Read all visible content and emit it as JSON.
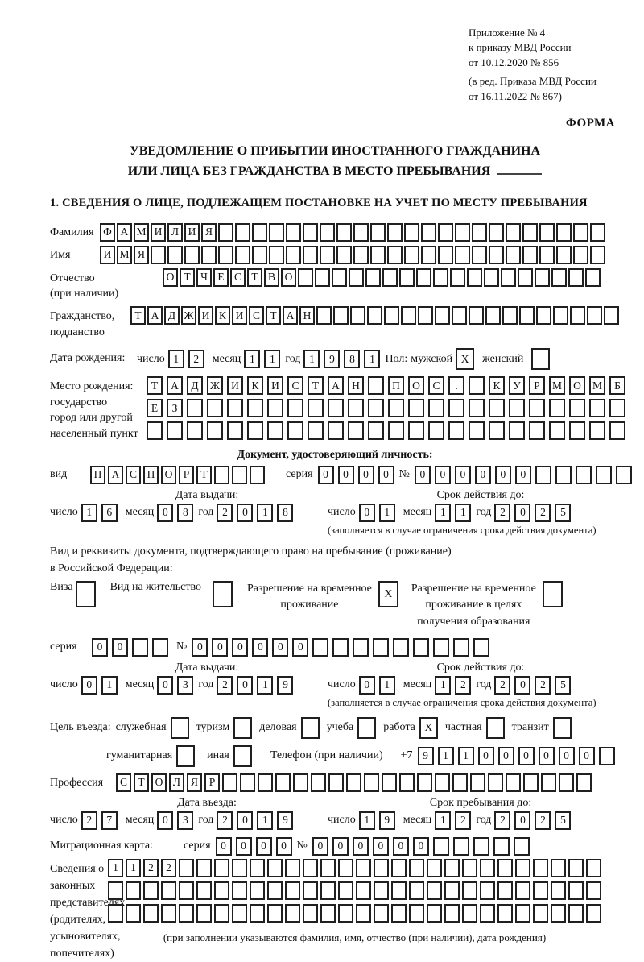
{
  "labels": {
    "day": "число",
    "month": "месяц",
    "year": "год",
    "series": "серия",
    "number": "№"
  },
  "header": {
    "annex": [
      "Приложение № 4",
      "к приказу МВД России",
      "от 10.12.2020 № 856"
    ],
    "edition": [
      "(в ред. Приказа МВД России",
      "от 16.11.2022 № 867)"
    ],
    "form_label": "ФОРМА"
  },
  "title": {
    "line1": "УВЕДОМЛЕНИЕ О ПРИБЫТИИ ИНОСТРАННОГО ГРАЖДАНИНА",
    "line2": "ИЛИ ЛИЦА БЕЗ ГРАЖДАНСТВА В МЕСТО ПРЕБЫВАНИЯ"
  },
  "section1": {
    "heading": "1. СВЕДЕНИЯ О ЛИЦЕ, ПОДЛЕЖАЩЕМ ПОСТАНОВКЕ НА УЧЕТ ПО МЕСТУ ПРЕБЫВАНИЯ",
    "surname": {
      "label": "Фамилия",
      "cells": {
        "v": "ФАМИЛИЯ",
        "n": 30
      }
    },
    "firstname": {
      "label": "Имя",
      "cells": {
        "v": "ИМЯ",
        "n": 30
      }
    },
    "patronymic": {
      "label1": "Отчество",
      "label2": "(при наличии)",
      "cells": {
        "v": "ОТЧЕСТВО",
        "n": 26
      }
    },
    "citizenship": {
      "label1": "Гражданство,",
      "label2": "подданство",
      "cells": {
        "v": "ТАДЖИКИСТАН",
        "n": 29
      }
    },
    "birthdate": {
      "label": "Дата рождения:",
      "day": {
        "v": "12",
        "n": 2
      },
      "month": {
        "v": "11",
        "n": 2
      },
      "year": {
        "v": "1981",
        "n": 4
      },
      "sex_label": "Пол:",
      "male_label": "мужской",
      "male": {
        "v": "X",
        "n": 1
      },
      "female_label": "женский",
      "female": {
        "v": " ",
        "n": 1
      }
    },
    "birthplace": {
      "label_lines": [
        "Место рождения:",
        "государство",
        "город или другой",
        "населенный пункт"
      ],
      "row1": {
        "v": "ТАДЖИКИСТАН ПОС. КУРМОМБ",
        "n": 24
      },
      "row2": {
        "v": "ЕЗ",
        "n": 24
      },
      "row3": {
        "v": "",
        "n": 24
      }
    },
    "identity_doc": {
      "heading": "Документ, удостоверяющий личность:",
      "kind_label": "вид",
      "kind": {
        "v": "ПАСПОРТ",
        "n": 10
      },
      "series": {
        "v": "0000",
        "n": 4
      },
      "number": {
        "v": "000000",
        "n": 11
      },
      "issue_label": "Дата выдачи:",
      "issue_day": {
        "v": "16",
        "n": 2
      },
      "issue_month": {
        "v": "08",
        "n": 2
      },
      "issue_year": {
        "v": "2018",
        "n": 4
      },
      "valid_label": "Срок действия до:",
      "valid_day": {
        "v": "01",
        "n": 2
      },
      "valid_month": {
        "v": "11",
        "n": 2
      },
      "valid_year": {
        "v": "2025",
        "n": 4
      },
      "valid_note": "(заполняется в случае ограничения срока действия документа)"
    },
    "residence_doc": {
      "intro1": "Вид и реквизиты документа, подтверждающего право на пребывание (проживание)",
      "intro2": "в Российской Федерации:",
      "visa_label": "Виза",
      "visa": {
        "v": " ",
        "n": 1
      },
      "residence_permit_label": "Вид на жительство",
      "residence_permit": {
        "v": " ",
        "n": 1
      },
      "temp_permit_lines": [
        "Разрешение на временное",
        "проживание"
      ],
      "temp_permit": {
        "v": "X",
        "n": 1
      },
      "edu_permit_lines": [
        "Разрешение на временное",
        "проживание в целях",
        "получения образования"
      ],
      "edu_permit": {
        "v": " ",
        "n": 1
      },
      "series": {
        "v": "00",
        "n": 4
      },
      "number": {
        "v": "000000",
        "n": 15
      },
      "issue_label": "Дата выдачи:",
      "issue_day": {
        "v": "01",
        "n": 2
      },
      "issue_month": {
        "v": "03",
        "n": 2
      },
      "issue_year": {
        "v": "2019",
        "n": 4
      },
      "valid_label": "Срок действия до:",
      "valid_day": {
        "v": "01",
        "n": 2
      },
      "valid_month": {
        "v": "12",
        "n": 2
      },
      "valid_year": {
        "v": "2025",
        "n": 4
      },
      "valid_note": "(заполняется в случае ограничения срока действия документа)"
    },
    "visit_purpose": {
      "label": "Цель въезда:",
      "options_row1": [
        {
          "label": "служебная",
          "box": {
            "v": " ",
            "n": 1
          }
        },
        {
          "label": "туризм",
          "box": {
            "v": " ",
            "n": 1
          }
        },
        {
          "label": "деловая",
          "box": {
            "v": " ",
            "n": 1
          }
        },
        {
          "label": "учеба",
          "box": {
            "v": " ",
            "n": 1
          }
        },
        {
          "label": "работа",
          "box": {
            "v": "X",
            "n": 1
          }
        },
        {
          "label": "частная",
          "box": {
            "v": " ",
            "n": 1
          }
        },
        {
          "label": "транзит",
          "box": {
            "v": " ",
            "n": 1
          }
        }
      ],
      "options_row2": [
        {
          "label": "гуманитарная",
          "box": {
            "v": " ",
            "n": 1
          }
        },
        {
          "label": "иная",
          "box": {
            "v": " ",
            "n": 1
          }
        }
      ],
      "phone_label": "Телефон (при наличии)",
      "phone_prefix": "+7",
      "phone": {
        "v": "911000000",
        "n": 10
      }
    },
    "profession": {
      "label": "Профессия",
      "cells": {
        "v": "СТОЛЯР",
        "n": 27
      }
    },
    "entry": {
      "entry_label": "Дата въезда:",
      "entry_day": {
        "v": "27",
        "n": 2
      },
      "entry_month": {
        "v": "03",
        "n": 2
      },
      "entry_year": {
        "v": "2019",
        "n": 4
      },
      "stay_label": "Срок пребывания до:",
      "stay_day": {
        "v": "19",
        "n": 2
      },
      "stay_month": {
        "v": "12",
        "n": 2
      },
      "stay_year": {
        "v": "2025",
        "n": 4
      }
    },
    "migration_card": {
      "label": "Миграционная карта:",
      "series": {
        "v": "0000",
        "n": 4
      },
      "number": {
        "v": "000000",
        "n": 11
      }
    },
    "representatives": {
      "label_lines": [
        "Сведения о",
        "законных",
        "представителях",
        "(родителях,",
        "усыновителях,",
        "попечителях)"
      ],
      "row1": {
        "v": "1122",
        "n": 28
      },
      "row2": {
        "v": "",
        "n": 28
      },
      "row3": {
        "v": "",
        "n": 28
      },
      "note": "(при заполнении указываются фамилия, имя, отчество (при наличии), дата рождения)"
    }
  }
}
